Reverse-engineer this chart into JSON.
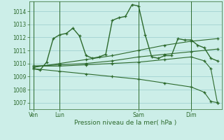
{
  "title": "Pression niveau de la mer( hPa )",
  "bg_color": "#cceee8",
  "grid_color": "#99cccc",
  "line_color": "#2d6a2d",
  "ylim": [
    1006.5,
    1014.75
  ],
  "yticks": [
    1007,
    1008,
    1009,
    1010,
    1011,
    1012,
    1013,
    1014
  ],
  "day_labels": [
    "Ven",
    "Lun",
    "Sam",
    "Dim"
  ],
  "day_positions": [
    0,
    24,
    96,
    144
  ],
  "vlines": [
    0,
    24,
    96,
    144
  ],
  "xlim": [
    -4,
    172
  ],
  "series": [
    {
      "x": [
        0,
        6,
        12,
        18,
        24,
        30,
        36,
        42,
        48,
        54,
        60,
        66,
        72,
        78,
        84,
        90,
        96,
        102,
        108,
        114,
        120,
        126,
        132,
        138,
        144,
        150,
        156,
        162,
        168
      ],
      "y": [
        1009.6,
        1009.5,
        1010.1,
        1011.9,
        1012.2,
        1012.3,
        1012.7,
        1012.1,
        1010.6,
        1010.4,
        1010.5,
        1010.7,
        1013.3,
        1013.5,
        1013.6,
        1014.5,
        1014.4,
        1012.2,
        1010.5,
        1010.4,
        1010.6,
        1010.6,
        1011.9,
        1011.8,
        1011.8,
        1011.4,
        1011.2,
        1010.4,
        1010.2
      ],
      "marker": true,
      "lw": 1.0
    },
    {
      "x": [
        0,
        24,
        48,
        72,
        96,
        120,
        144,
        168
      ],
      "y": [
        1009.7,
        1010.0,
        1010.3,
        1010.6,
        1011.0,
        1011.4,
        1011.7,
        1011.9
      ],
      "marker": true,
      "lw": 0.8
    },
    {
      "x": [
        0,
        24,
        48,
        72,
        96,
        120,
        144,
        168
      ],
      "y": [
        1009.8,
        1009.9,
        1010.0,
        1010.2,
        1010.5,
        1010.7,
        1010.9,
        1011.1
      ],
      "marker": true,
      "lw": 0.8
    },
    {
      "x": [
        0,
        24,
        48,
        72,
        96,
        120,
        144,
        156,
        162,
        168
      ],
      "y": [
        1009.6,
        1009.4,
        1009.2,
        1009.0,
        1008.8,
        1008.5,
        1008.2,
        1007.8,
        1007.1,
        1007.0
      ],
      "marker": true,
      "lw": 0.8
    },
    {
      "x": [
        0,
        24,
        48,
        72,
        96,
        120,
        144,
        156,
        162,
        168
      ],
      "y": [
        1009.8,
        1009.8,
        1009.9,
        1010.0,
        1010.1,
        1010.3,
        1010.5,
        1010.2,
        1009.6,
        1007.0
      ],
      "marker": true,
      "lw": 0.8
    }
  ]
}
